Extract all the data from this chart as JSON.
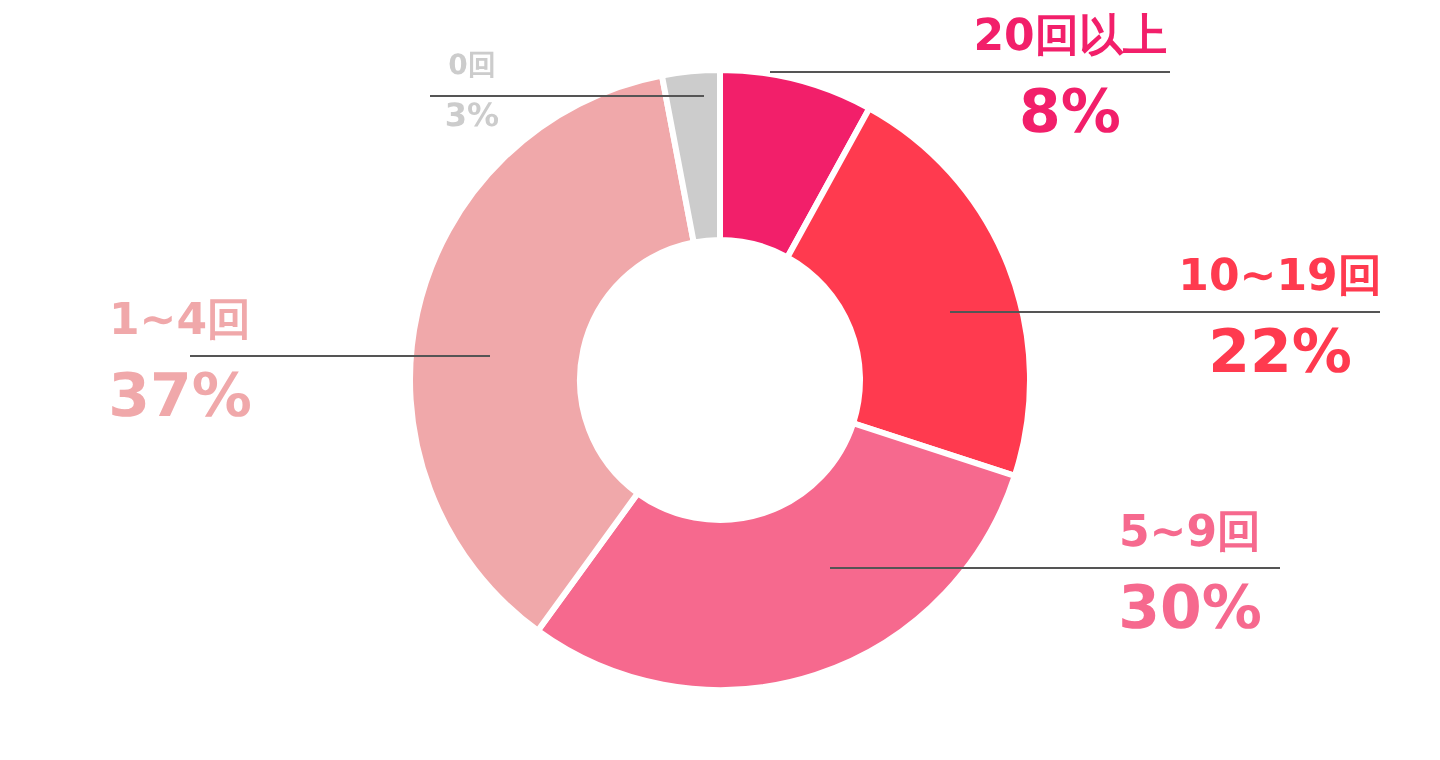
{
  "chart_data": {
    "type": "donut",
    "categories": [
      "20回以上",
      "10~19回",
      "5~9回",
      "1~4回",
      "0回"
    ],
    "values": [
      8,
      22,
      30,
      37,
      3
    ],
    "value_labels": [
      "8%",
      "22%",
      "30%",
      "37%",
      "3%"
    ],
    "colors": [
      "#f21f6a",
      "#ff3a4f",
      "#f6698e",
      "#f0a8aa",
      "#cccccc"
    ]
  }
}
